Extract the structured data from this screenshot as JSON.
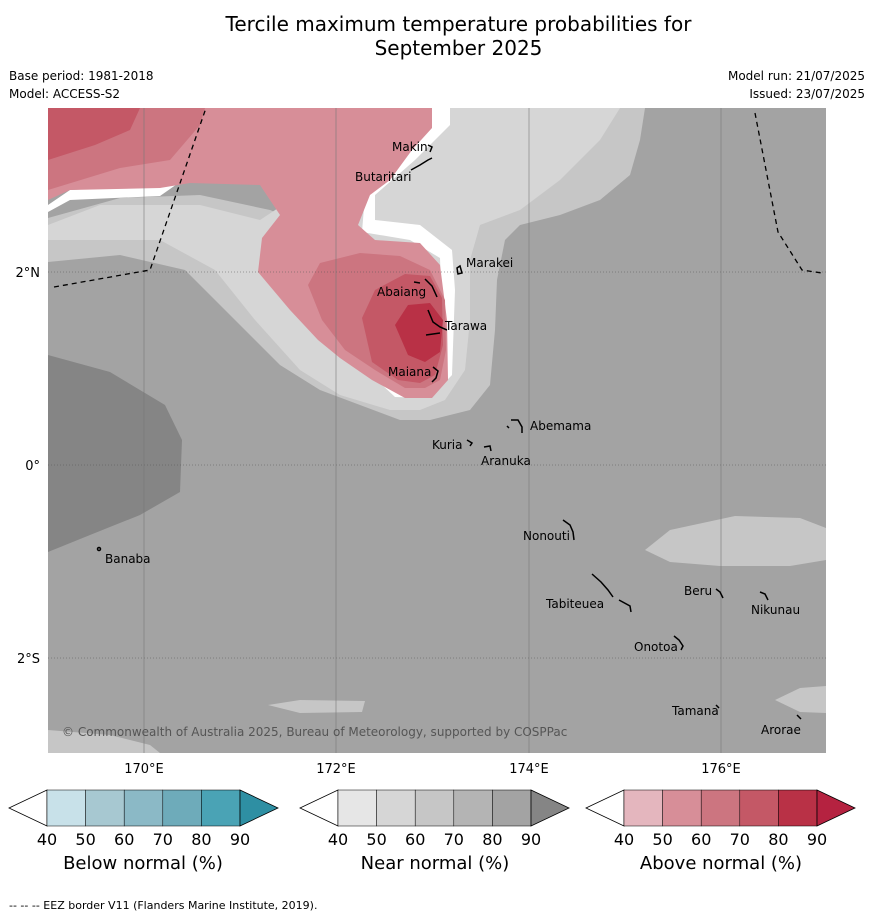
{
  "title": {
    "line1": "Tercile maximum temperature probabilities for",
    "line2": "September 2025"
  },
  "meta": {
    "base_period": "Base period: 1981-2018",
    "model": "Model: ACCESS-S2",
    "model_run": "Model run: 21/07/2025",
    "issued": "Issued: 23/07/2025"
  },
  "map": {
    "lat_labels": [
      "2°N",
      "0°",
      "2°S"
    ],
    "lon_labels": [
      "170°E",
      "172°E",
      "174°E",
      "176°E"
    ],
    "places": [
      "Makin",
      "Butaritari",
      "Marakei",
      "Abaiang",
      "Tarawa",
      "Maiana",
      "Abemama",
      "Kuria",
      "Aranuka",
      "Nonouti",
      "Banaba",
      "Beru",
      "Tabiteuea",
      "Nikunau",
      "Onotoa",
      "Tamana",
      "Arorae"
    ],
    "copyright": "© Commonwealth of Australia 2025, Bureau of Meteorology, supported by COSPPac"
  },
  "colors": {
    "below": [
      "#c8e1e9",
      "#a7c8d1",
      "#8bb9c6",
      "#6eabba",
      "#4aa3b5",
      "#2e8fa3"
    ],
    "near": [
      "#e6e6e6",
      "#d6d6d6",
      "#c6c6c6",
      "#b4b4b4",
      "#a3a3a3",
      "#858585"
    ],
    "above": [
      "#e4b6be",
      "#d78e98",
      "#cc7580",
      "#c45866",
      "#b93146",
      "#b52240"
    ]
  },
  "colorbars": {
    "ticks": [
      "40",
      "50",
      "60",
      "70",
      "80",
      "90"
    ],
    "below_label": "Below normal (%)",
    "near_label": "Near normal (%)",
    "above_label": "Above normal (%)"
  },
  "footer": "-- -- -- EEZ border V11 (Flanders Marine Institute, 2019)."
}
